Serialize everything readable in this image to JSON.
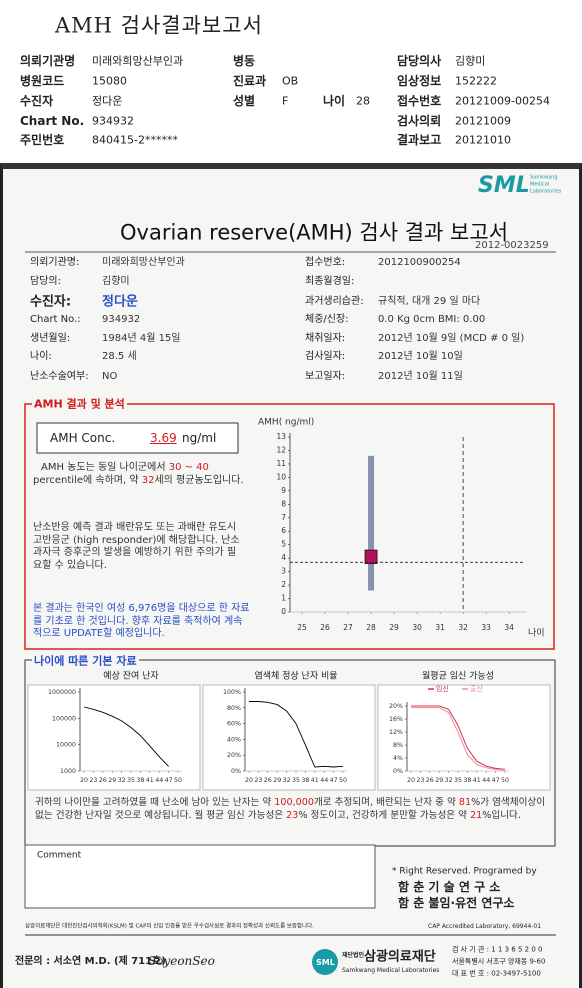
{
  "header": {
    "title": "AMH 검사결과보고서",
    "rows": [
      [
        {
          "label": "의뢰기관명",
          "value": "미래와희망산부인과"
        },
        {
          "label": "병동"
        },
        {
          "label": "담당의사",
          "value": "김향미"
        }
      ],
      [
        {
          "label": "병원코드",
          "value": "15080"
        },
        {
          "label": "진료과",
          "value": "OB"
        },
        {
          "label": "임상정보",
          "value": "152222"
        }
      ],
      [
        {
          "label": "수진자",
          "value": "정다운"
        },
        {
          "label": "성별",
          "value": "F"
        },
        {
          "label": "나이",
          "value": "28"
        },
        {
          "label": "접수번호",
          "value": "20121009-00254"
        }
      ],
      [
        {
          "label": "Chart No.",
          "value": "934932"
        },
        {
          "label": "검사의뢰",
          "value": "20121009"
        }
      ],
      [
        {
          "label": "주민번호",
          "value": "840415-2******"
        },
        {
          "label": "결과보고",
          "value": "20121010"
        }
      ]
    ]
  },
  "report": {
    "logo": "SML",
    "logo_sub": [
      "Samkwang",
      "Medical",
      "Laboratories"
    ],
    "title": "Ovarian reserve(AMH) 검사 결과 보고서",
    "number": "2012-0023259",
    "left": [
      {
        "label": "의뢰기관명:",
        "value": "미래와희망산부인과"
      },
      {
        "label": "담당의:",
        "value": "김향미"
      },
      {
        "label": "수진자:",
        "value": "정다운"
      },
      {
        "label": "Chart No.:",
        "value": "934932"
      },
      {
        "label": "생년월일:",
        "value": "1984년 4월 15일"
      },
      {
        "label": "나이:",
        "value": "28.5 세"
      },
      {
        "label": "난소수술여부:",
        "value": "NO"
      }
    ],
    "right": [
      {
        "label": "접수번호:",
        "value": "2012100900254"
      },
      {
        "label": "최종월경일:"
      },
      {
        "label": "과거생리습관:",
        "value": "규칙적, 대개  29 일 마다"
      },
      {
        "label": "체중/신장:",
        "value": "0.0 Kg      0cm    BMI:  0.00"
      },
      {
        "label": "채취일자:",
        "value": "2012년 10월 9일   (MCD # 0 일)"
      },
      {
        "label": "검사일자:",
        "value": "2012년 10월 10일"
      },
      {
        "label": "보고일자:",
        "value": "2012년 10월 11일"
      }
    ]
  },
  "analysis": {
    "title": "AMH 결과 및 분석",
    "conc_label": "AMH Conc.",
    "conc_unit": "ng/ml",
    "p1": [
      "AMH 농도는 동일 나이군에서 ",
      "30 ~ 40",
      " percentile에 속하며, 약 ",
      "32",
      "세의 평균농도입니다."
    ],
    "p2": "난소반응 예측 결과 배란유도 또는 과배란 유도시 고반응군 (high responder)에 해당합니다. 난소과자극 증후군의 발생을 예방하기 위한 주의가 필요할 수 있습니다.",
    "p3": "본 결과는 한국인 여성 6,976명을 대상으로 한 자료를 기초로 한 것입니다. 향후 자료를 축적하여 계속적으로 UPDATE할 예정입니다."
  },
  "basic": {
    "title": "나이에 따른 기본 자료",
    "summary": [
      "귀하의 나이만을 고려하였을 때 난소에 남아 있는 난자는 약 ",
      "100,000",
      "개로 추정되며, 배란되는 난자 중 약 ",
      "81",
      "%가 염색체이상이 없는 건강한 난자일 것으로 예상됩니다. 월 평균 임신 가능성은 ",
      "23",
      "% 정도이고, 건강하게 분만할 가능성은 약 ",
      "21",
      "%입니다."
    ]
  },
  "comment_label": "Comment",
  "credits": [
    "* Right Reserved. Programed by",
    "함 춘 기 술 연 구 소",
    "함 춘 불임·유전 연구소"
  ],
  "footer": {
    "accreditation": "삼광의료재단은 대한진단검사의학회(KSLM) 및 CAP의 신임 인증을 받은 우수검사실로 결과의 정확성과 신뢰도를 보증합니다.",
    "cap": "CAP Accredited Laboratory, 69944-01",
    "doctor": "전문의 : 서소연 M.D. (제 711호)",
    "signature": "SoyeonSeo",
    "logo": "SML",
    "foundation_tag": "재단법인",
    "foundation": "삼광의료재단",
    "foundation_en": "Samkwang Medical Laboratories",
    "contact": [
      "검 사 기 관 : 1 1 3 6 5 2 0 0",
      "서울특별시 서초구 양재동 9-60",
      "대 표 번 호 : 02-3497-5100"
    ]
  },
  "chart_data": [
    {
      "type": "box",
      "y_label": "AMH( ng/ml)",
      "x_label": "나이",
      "xlim": [
        24.48,
        34.6
      ],
      "ylim": [
        0,
        13
      ],
      "xticks": [
        25,
        26,
        27,
        28,
        29,
        30,
        31,
        32,
        33,
        34
      ],
      "yticks": [
        0,
        1,
        2,
        3,
        4,
        5,
        6,
        7,
        8,
        9,
        10,
        11,
        12,
        13
      ],
      "x": 28,
      "whisker": [
        1.6,
        11.6
      ],
      "box": [
        3.6,
        4.6
      ],
      "value": 3.69,
      "reference_x": 32,
      "whisker_color": "#8791b0",
      "box_color": "#b0135a"
    },
    {
      "type": "line",
      "title": "예상 잔여 난자",
      "log_y": true,
      "xlim": [
        20,
        50
      ],
      "ylim": [
        1000,
        1000000
      ],
      "xticks": [
        20,
        23,
        26,
        29,
        32,
        35,
        38,
        41,
        44,
        47,
        50
      ],
      "yticks": [
        1000000,
        100000,
        10000,
        1000
      ],
      "x": [
        20,
        23,
        26,
        29,
        32,
        35,
        38,
        41,
        44,
        47,
        50
      ],
      "values": [
        270000,
        220000,
        170000,
        120000,
        80000,
        45000,
        22000,
        9000,
        3500,
        1500,
        null
      ],
      "color": "#000000"
    },
    {
      "type": "line",
      "title": "염색체 정상 난자 비율",
      "xlim": [
        20,
        50
      ],
      "ylim": [
        0,
        100
      ],
      "xticks": [
        20,
        23,
        26,
        29,
        32,
        35,
        38,
        41,
        44,
        47,
        50
      ],
      "yticks": [
        {
          "value": 0,
          "label": "0%"
        },
        {
          "value": 20,
          "label": "20%"
        },
        {
          "value": 40,
          "label": "40%"
        },
        {
          "value": 60,
          "label": "60%"
        },
        {
          "value": 80,
          "label": "80%"
        },
        {
          "value": 100,
          "label": "100%"
        }
      ],
      "x": [
        20,
        23,
        26,
        29,
        32,
        35,
        38,
        41,
        44,
        47,
        50
      ],
      "values": [
        88,
        88,
        87,
        84,
        76,
        60,
        33,
        5,
        6,
        5,
        6
      ],
      "color": "#000000"
    },
    {
      "type": "line",
      "title": "월평균 임신 가능성",
      "xlim": [
        20,
        50
      ],
      "ylim": [
        0,
        20
      ],
      "xticks": [
        20,
        23,
        26,
        29,
        32,
        35,
        38,
        41,
        44,
        47,
        50
      ],
      "yticks": [
        {
          "value": 0,
          "label": "0%"
        },
        {
          "value": 4,
          "label": "4%"
        },
        {
          "value": 8,
          "label": "8%"
        },
        {
          "value": 12,
          "label": "12%"
        },
        {
          "value": 16,
          "label": "16%"
        },
        {
          "value": 20,
          "label": "20%"
        }
      ],
      "x": [
        20,
        23,
        26,
        29,
        32,
        35,
        38,
        41,
        44,
        47,
        50
      ],
      "series": [
        {
          "name": "임신",
          "color": "#d9304f",
          "values": [
            20,
            20,
            20,
            20,
            19,
            14,
            7,
            3,
            1.5,
            0.8,
            0.5
          ]
        },
        {
          "name": "출산",
          "color": "#f08a9a",
          "values": [
            19.5,
            19.5,
            19.5,
            19.5,
            18,
            12,
            5,
            2,
            1,
            0.5,
            0.3
          ]
        }
      ]
    }
  ]
}
